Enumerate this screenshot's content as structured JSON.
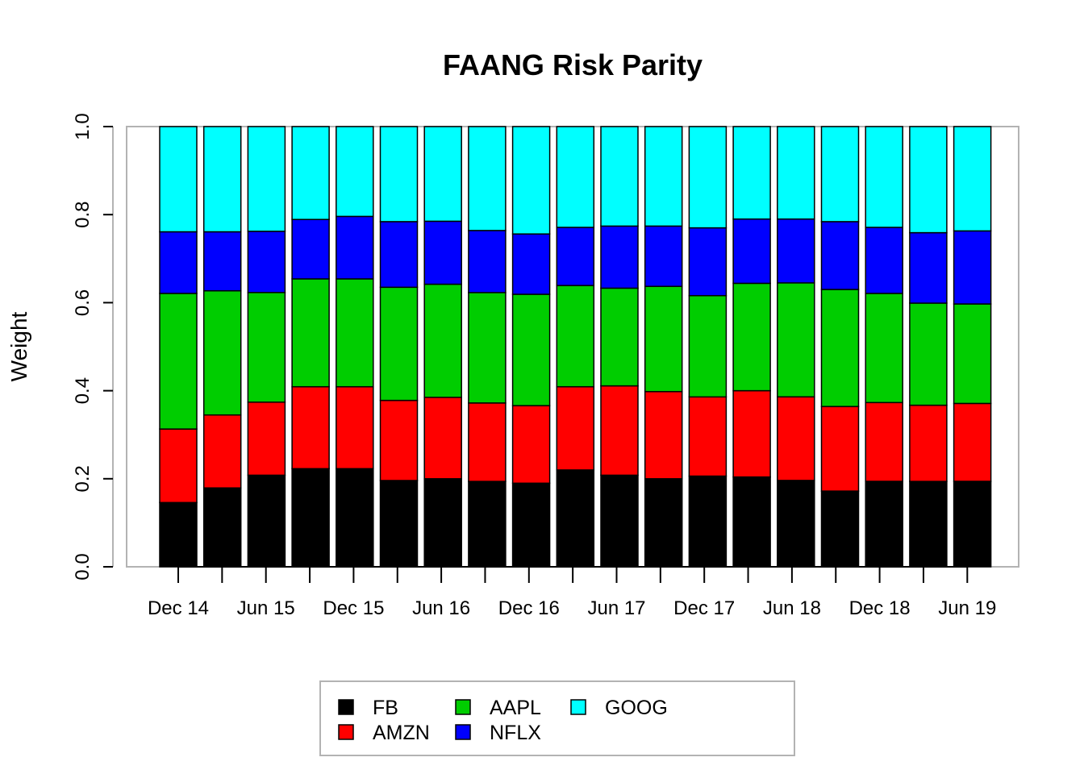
{
  "chart_data": {
    "type": "stacked-bar",
    "title": "FAANG Risk Parity",
    "xlabel": "",
    "ylabel": "Weight",
    "ylim": [
      0,
      1
    ],
    "yticks": [
      "0.0",
      "0.2",
      "0.4",
      "0.6",
      "0.8",
      "1.0"
    ],
    "xtick_labels": [
      "Dec 14",
      "Jun 15",
      "Dec 15",
      "Jun 16",
      "Dec 16",
      "Jun 17",
      "Dec 17",
      "Jun 18",
      "Dec 18",
      "Jun 19"
    ],
    "colors": {
      "FB": "#000000",
      "AMZN": "#ff0000",
      "AAPL": "#00cd00",
      "NFLX": "#0000ff",
      "GOOG": "#00ffff"
    },
    "series": [
      {
        "name": "FB",
        "values": [
          0.146,
          0.179,
          0.208,
          0.223,
          0.223,
          0.196,
          0.2,
          0.194,
          0.19,
          0.22,
          0.208,
          0.2,
          0.206,
          0.204,
          0.196,
          0.172,
          0.194,
          0.194,
          0.194
        ]
      },
      {
        "name": "AMZN",
        "values": [
          0.167,
          0.166,
          0.166,
          0.186,
          0.186,
          0.182,
          0.185,
          0.178,
          0.176,
          0.189,
          0.203,
          0.198,
          0.18,
          0.196,
          0.19,
          0.192,
          0.179,
          0.173,
          0.177
        ]
      },
      {
        "name": "AAPL",
        "values": [
          0.308,
          0.282,
          0.249,
          0.245,
          0.245,
          0.257,
          0.257,
          0.251,
          0.253,
          0.23,
          0.222,
          0.239,
          0.23,
          0.244,
          0.259,
          0.266,
          0.248,
          0.232,
          0.226
        ]
      },
      {
        "name": "NFLX",
        "values": [
          0.14,
          0.134,
          0.139,
          0.135,
          0.142,
          0.149,
          0.143,
          0.141,
          0.137,
          0.132,
          0.141,
          0.137,
          0.154,
          0.146,
          0.145,
          0.154,
          0.15,
          0.16,
          0.166
        ]
      },
      {
        "name": "GOOG",
        "values": [
          0.239,
          0.239,
          0.238,
          0.211,
          0.204,
          0.216,
          0.215,
          0.236,
          0.244,
          0.229,
          0.226,
          0.226,
          0.23,
          0.21,
          0.21,
          0.216,
          0.229,
          0.241,
          0.237
        ]
      }
    ],
    "legend": {
      "position": "bottom",
      "entries": [
        "FB",
        "AMZN",
        "AAPL",
        "NFLX",
        "GOOG"
      ]
    }
  }
}
